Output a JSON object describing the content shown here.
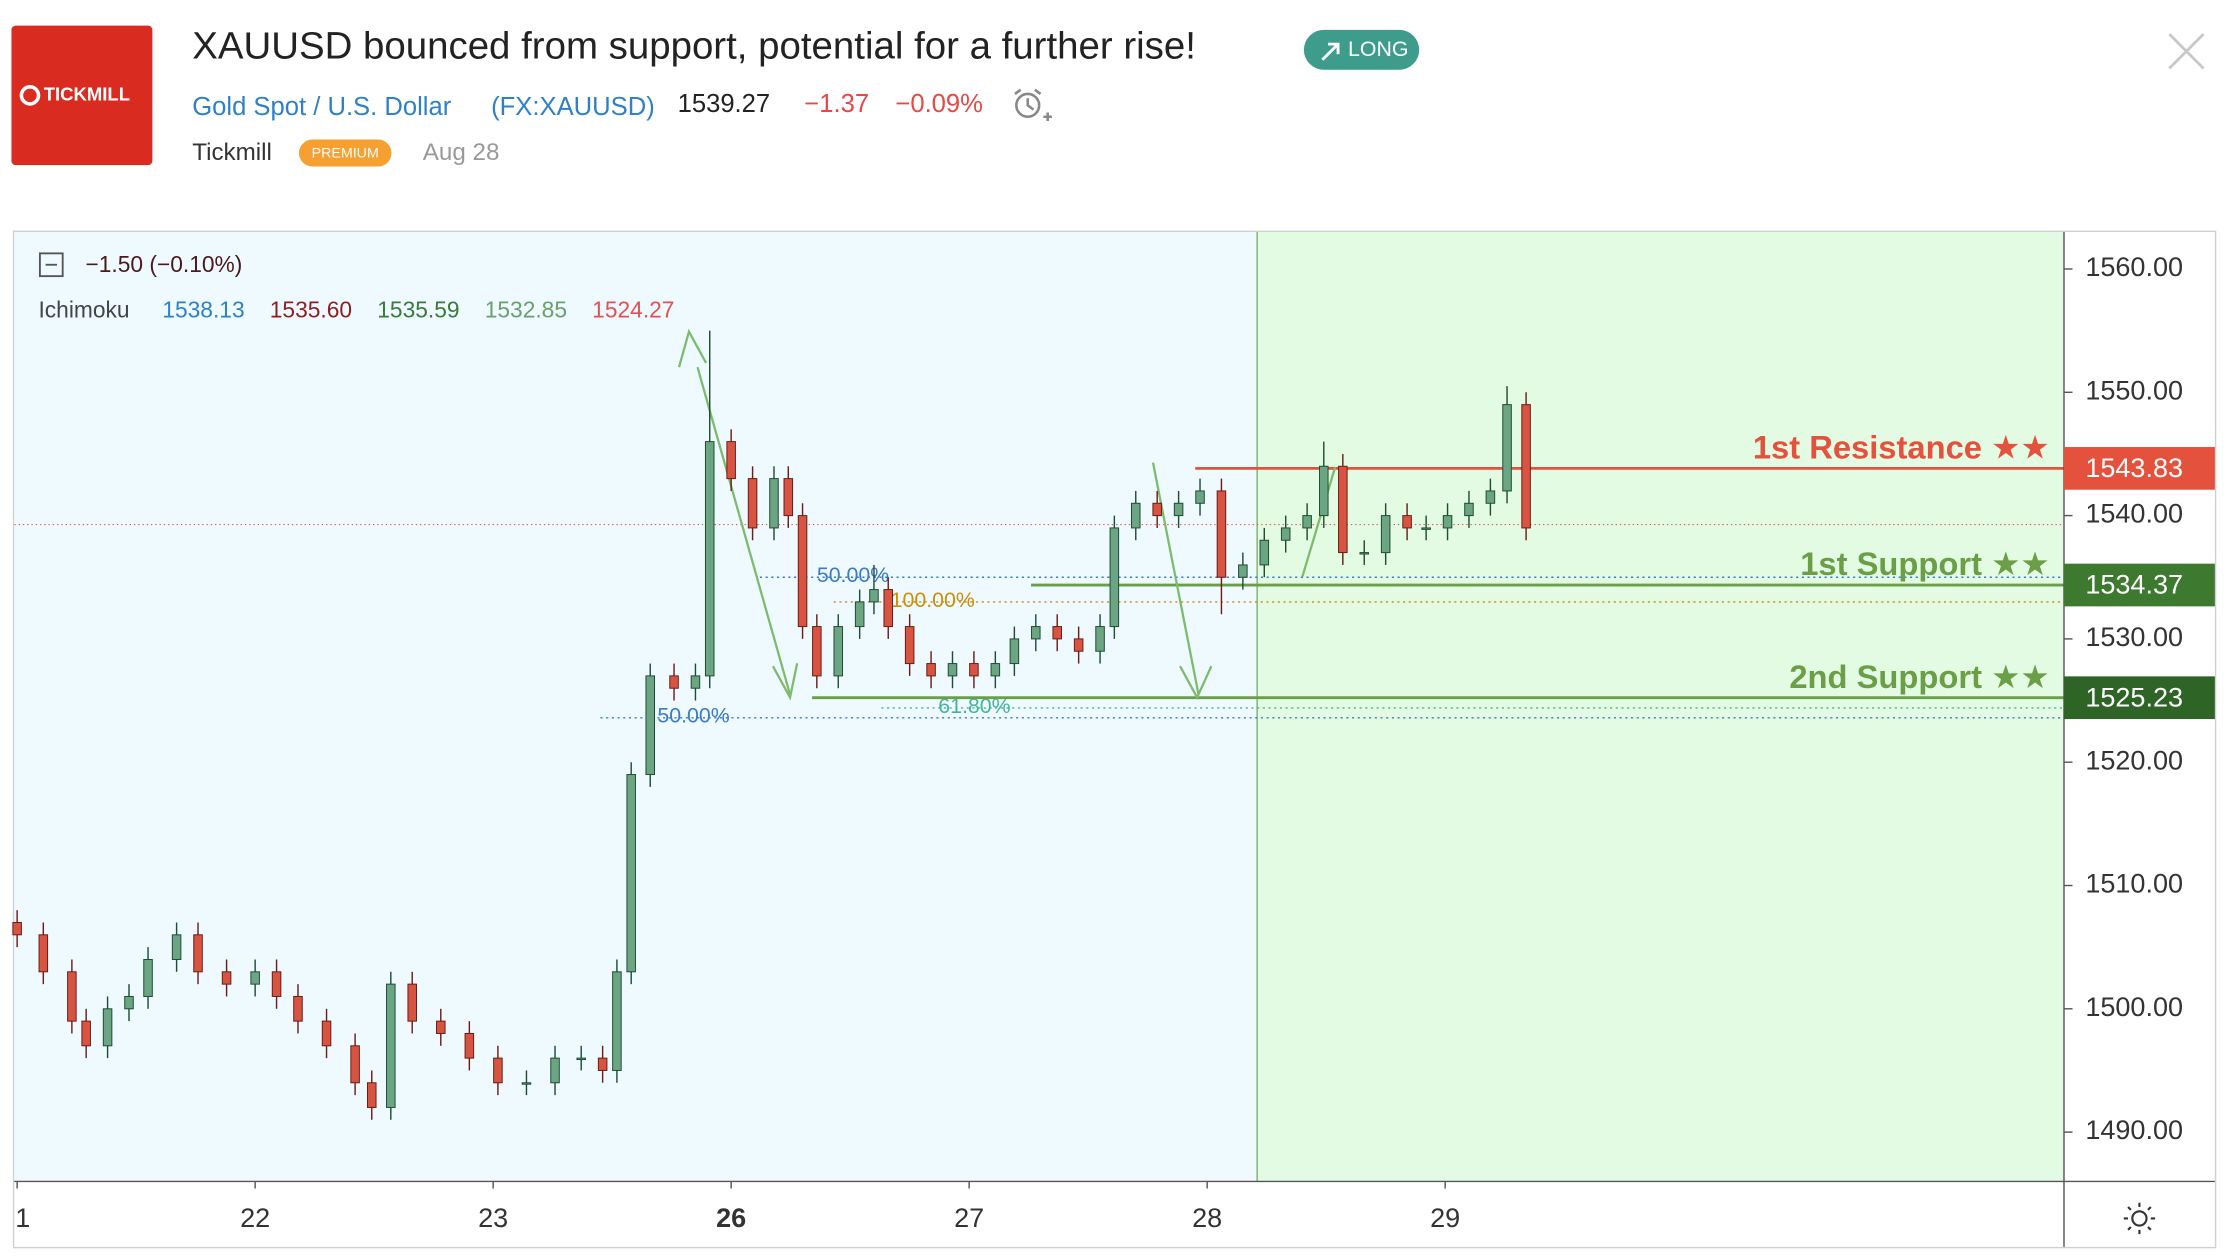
{
  "header": {
    "logo": "TICKMILL",
    "title": "XAUUSD bounced from support, potential for a further rise!",
    "badge": "LONG",
    "instrument": "Gold Spot / U.S. Dollar",
    "symbol": "(FX:XAUUSD)",
    "price": "1539.27",
    "change": "−1.37",
    "change_pct": "−0.09%",
    "author": "Tickmill",
    "author_badge": "PREMIUM",
    "date": "Aug 28"
  },
  "chart_data": {
    "type": "candlestick",
    "legend": {
      "change": "−1.50 (−0.10%)",
      "indicator": "Ichimoku",
      "values": [
        {
          "label": "1538.13",
          "color": "#2f80c8"
        },
        {
          "label": "1535.60",
          "color": "#8e1f1f"
        },
        {
          "label": "1535.59",
          "color": "#3a7a3a"
        },
        {
          "label": "1532.85",
          "color": "#6aa06a"
        },
        {
          "label": "1524.27",
          "color": "#e45050"
        }
      ]
    },
    "xlim": [
      0,
      8.6
    ],
    "ylim": [
      1486,
      1563
    ],
    "xticks": [
      {
        "value": 0,
        "label": "1"
      },
      {
        "value": 1,
        "label": "22"
      },
      {
        "value": 2,
        "label": "23"
      },
      {
        "value": 3,
        "label": "26"
      },
      {
        "value": 4,
        "label": "27"
      },
      {
        "value": 5,
        "label": "28"
      },
      {
        "value": 6,
        "label": "29"
      }
    ],
    "yticks": [
      {
        "value": 1490,
        "label": "1490.00"
      },
      {
        "value": 1500,
        "label": "1500.00"
      },
      {
        "value": 1510,
        "label": "1510.00"
      },
      {
        "value": 1520,
        "label": "1520.00"
      },
      {
        "value": 1530,
        "label": "1530.00"
      },
      {
        "value": 1540,
        "label": "1540.00"
      },
      {
        "value": 1550,
        "label": "1550.00"
      },
      {
        "value": 1560,
        "label": "1560.00"
      }
    ],
    "up_color": "#6ba583",
    "down_color": "#d75442",
    "x": [
      0,
      0.11,
      0.23,
      0.29,
      0.38,
      0.47,
      0.55,
      0.67,
      0.76,
      0.88,
      1.0,
      1.09,
      1.18,
      1.3,
      1.42,
      1.49,
      1.57,
      1.66,
      1.78,
      1.9,
      2.02,
      2.14,
      2.26,
      2.37,
      2.46,
      2.52,
      2.58,
      2.66,
      2.76,
      2.85,
      2.91,
      3.0,
      3.09,
      3.18,
      3.24,
      3.3,
      3.36,
      3.45,
      3.54,
      3.6,
      3.66,
      3.75,
      3.84,
      3.93,
      4.02,
      4.11,
      4.19,
      4.28,
      4.37,
      4.46,
      4.55,
      4.61,
      4.7,
      4.79,
      4.88,
      4.97,
      5.06,
      5.15,
      5.24,
      5.33,
      5.42,
      5.49,
      5.57,
      5.66,
      5.75,
      5.84,
      5.92,
      6.01,
      6.1,
      6.19,
      6.26,
      6.34
    ],
    "open": [
      1507,
      1506,
      1503,
      1499,
      1497,
      1500,
      1501,
      1504,
      1506,
      1503,
      1502,
      1503,
      1501,
      1499,
      1497,
      1494,
      1492,
      1502,
      1499,
      1498,
      1496,
      1494,
      1494,
      1496,
      1496,
      1495,
      1503,
      1519,
      1527,
      1526,
      1527,
      1546,
      1543,
      1539,
      1543,
      1540,
      1531,
      1527,
      1531,
      1533,
      1534,
      1531,
      1528,
      1527,
      1528,
      1527,
      1528,
      1530,
      1531,
      1530,
      1529,
      1531,
      1539,
      1541,
      1540,
      1541,
      1542,
      1535,
      1536,
      1538,
      1539,
      1540,
      1544,
      1537,
      1537,
      1540,
      1539,
      1539,
      1540,
      1541,
      1542,
      1549
    ],
    "high": [
      1508,
      1507,
      1504,
      1500,
      1501,
      1502,
      1505,
      1507,
      1507,
      1504,
      1504,
      1504,
      1502,
      1500,
      1498,
      1495,
      1503,
      1503,
      1500,
      1499,
      1497,
      1495,
      1497,
      1497,
      1497,
      1504,
      1520,
      1528,
      1528,
      1528,
      1555,
      1547,
      1544,
      1544,
      1544,
      1541,
      1532,
      1532,
      1534,
      1536,
      1535,
      1532,
      1529,
      1529,
      1529,
      1529,
      1531,
      1532,
      1532,
      1531,
      1532,
      1540,
      1542,
      1542,
      1542,
      1543,
      1543,
      1537,
      1539,
      1540,
      1541,
      1546,
      1545,
      1538,
      1541,
      1541,
      1540,
      1541,
      1542,
      1543,
      1550.5,
      1550
    ],
    "low": [
      1505,
      1502,
      1498,
      1496,
      1496,
      1499,
      1500,
      1503,
      1502,
      1501,
      1501,
      1500,
      1498,
      1496,
      1493,
      1491,
      1491,
      1498,
      1497,
      1495,
      1493,
      1493,
      1493,
      1495,
      1494,
      1494,
      1502,
      1518,
      1525,
      1525,
      1526,
      1542,
      1538,
      1538,
      1539,
      1530,
      1526,
      1526,
      1530,
      1532,
      1530,
      1527,
      1526,
      1526,
      1526,
      1526,
      1527,
      1529,
      1529,
      1528,
      1528,
      1530,
      1538,
      1539,
      1539,
      1540,
      1532,
      1534,
      1535,
      1537,
      1538,
      1539,
      1536,
      1536,
      1536,
      1538,
      1538,
      1538,
      1539,
      1540,
      1541,
      1538
    ],
    "close": [
      1506,
      1503,
      1499,
      1497,
      1500,
      1501,
      1504,
      1506,
      1503,
      1502,
      1503,
      1501,
      1499,
      1497,
      1494,
      1492,
      1502,
      1499,
      1498,
      1496,
      1494,
      1494,
      1496,
      1496,
      1495,
      1503,
      1519,
      1527,
      1526,
      1527,
      1546,
      1543,
      1539,
      1543,
      1540,
      1531,
      1527,
      1531,
      1533,
      1534,
      1531,
      1528,
      1527,
      1528,
      1527,
      1528,
      1530,
      1531,
      1530,
      1529,
      1531,
      1539,
      1541,
      1540,
      1541,
      1542,
      1535,
      1536,
      1538,
      1539,
      1540,
      1544,
      1537,
      1537,
      1540,
      1539,
      1539,
      1540,
      1541,
      1542,
      1549,
      1539
    ],
    "last_price": 1539.27,
    "last_color": "#e06060",
    "zone_start": 5.21,
    "zone_color": "#e3fbe3",
    "zone_line_color": "#7fb26f",
    "levels": [
      {
        "name": "1st Resistance ★★",
        "value": 1543.83,
        "label": "1543.83",
        "from": 4.95,
        "color": "#e4513d",
        "tag_color": "#e4513d"
      },
      {
        "name": "1st Support ★★",
        "value": 1534.37,
        "label": "1534.37",
        "from": 4.26,
        "color": "#6a9f48",
        "tag_color": "#3d7a2f"
      },
      {
        "name": "2nd Support ★★",
        "value": 1525.23,
        "label": "1525.23",
        "from": 3.34,
        "color": "#6a9f48",
        "tag_color": "#2e6527"
      }
    ],
    "fibs": [
      {
        "label": "50.00%",
        "value": 1535,
        "from": 3.36,
        "color": "#3d7cc4"
      },
      {
        "label": "100.00%",
        "value": 1533,
        "from": 3.67,
        "color": "#c9900a"
      },
      {
        "label": "61.80%",
        "value": 1524.4,
        "from": 3.87,
        "color": "#47b39a"
      },
      {
        "label": "50.00%",
        "value": 1523.6,
        "from": 2.69,
        "color": "#3d7cc4"
      }
    ]
  }
}
